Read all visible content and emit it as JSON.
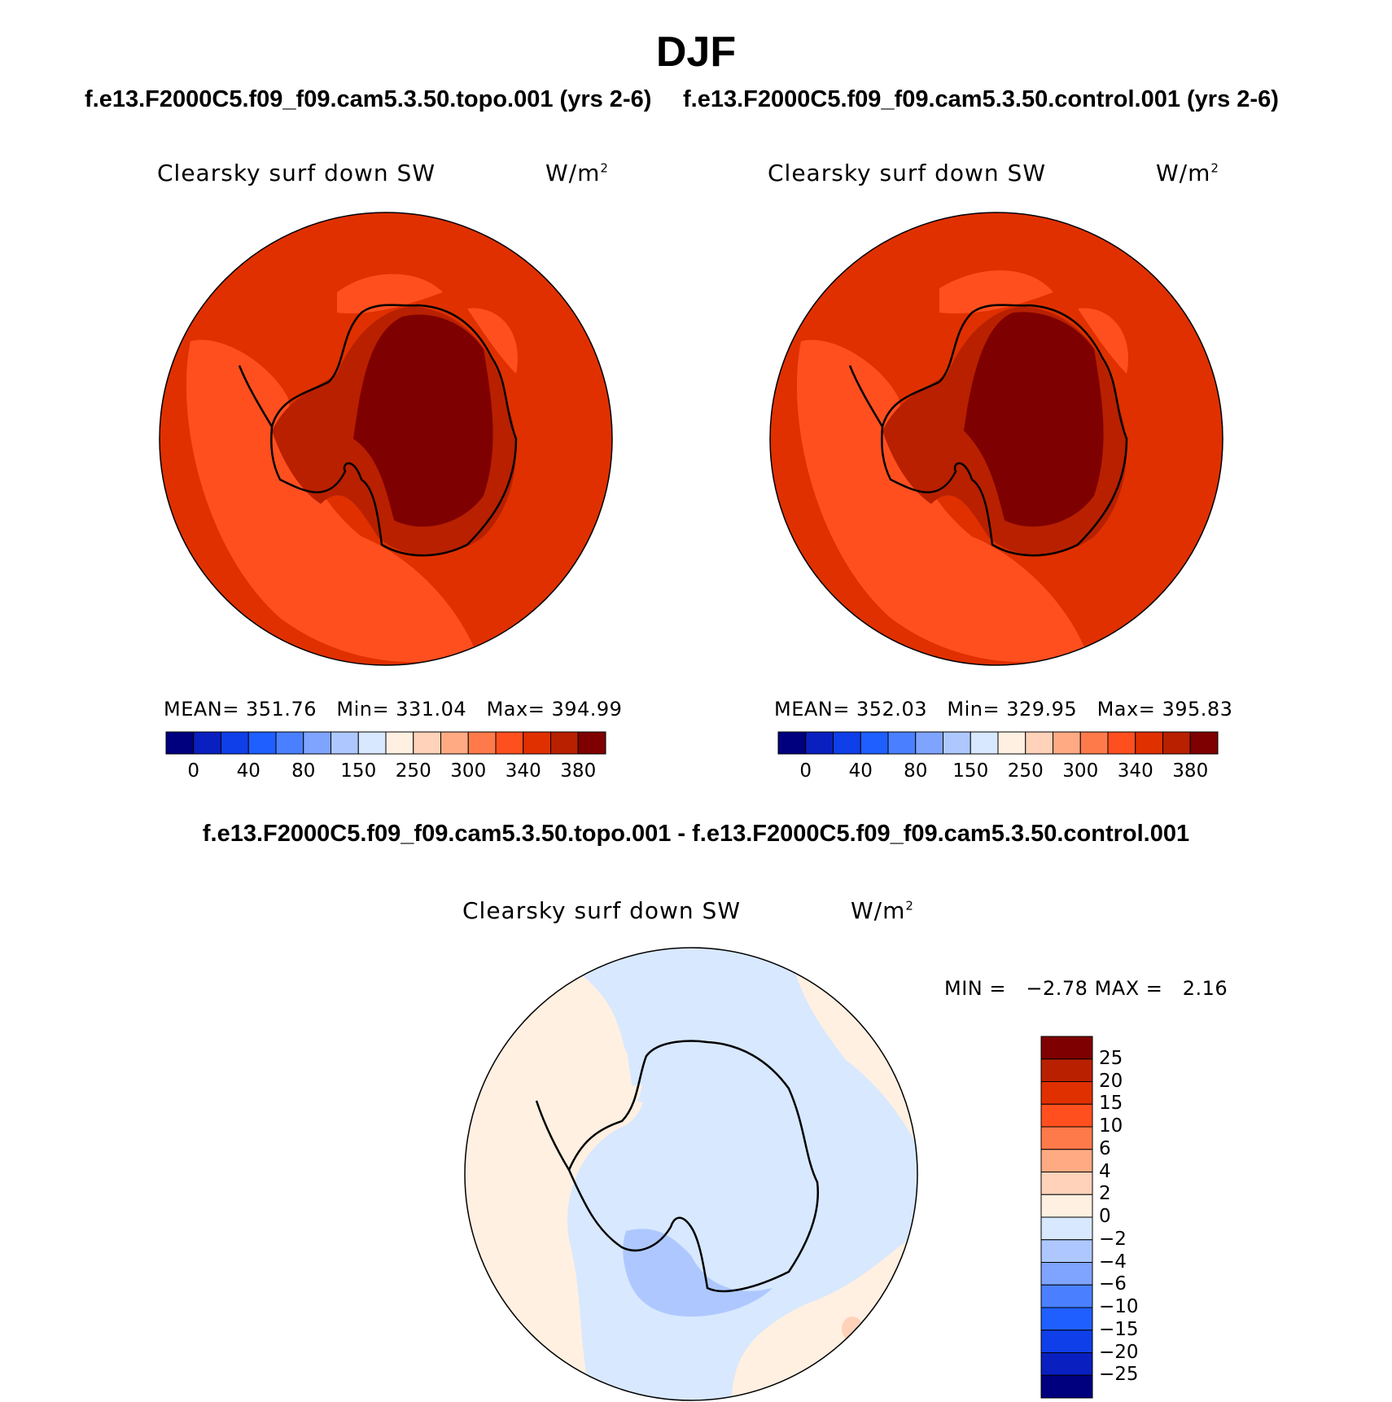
{
  "figure": {
    "season": "DJF",
    "diff_title": "f.e13.F2000C5.f09_f09.cam5.3.50.topo.001 - f.e13.F2000C5.f09_f09.cam5.3.50.control.001"
  },
  "panels": [
    {
      "case_title": "f.e13.F2000C5.f09_f09.cam5.3.50.topo.001 (yrs 2-6)",
      "variable": "Clearsky surf down SW",
      "units": "W/m",
      "units_exp": "2",
      "mean_label": "MEAN=",
      "mean": "351.76",
      "min_label": "Min=",
      "min": "331.04",
      "max_label": "Max=",
      "max": "394.99"
    },
    {
      "case_title": "f.e13.F2000C5.f09_f09.cam5.3.50.control.001 (yrs 2-6)",
      "variable": "Clearsky surf down SW",
      "units": "W/m",
      "units_exp": "2",
      "mean_label": "MEAN=",
      "mean": "352.03",
      "min_label": "Min=",
      "min": "329.95",
      "max_label": "Max=",
      "max": "395.83"
    }
  ],
  "diff_panel": {
    "variable": "Clearsky surf down SW",
    "units": "W/m",
    "units_exp": "2",
    "min_label": "MIN =",
    "min": "−2.78",
    "max_label": "MAX =",
    "max": "2.16"
  },
  "abs_colorbar": {
    "colors": [
      "#00007f",
      "#0a1fbf",
      "#0f3fe8",
      "#1f5fff",
      "#4a80ff",
      "#7fa4ff",
      "#aec8ff",
      "#d7e8ff",
      "#fff0e1",
      "#ffd2b9",
      "#ffaa82",
      "#ff7a4a",
      "#ff4f1f",
      "#e03000",
      "#b82000",
      "#7f0000"
    ],
    "tick_labels": [
      "0",
      "40",
      "80",
      "150",
      "250",
      "300",
      "340",
      "380"
    ]
  },
  "diff_colorbar": {
    "colors_top_to_bottom": [
      "#7f0000",
      "#b82000",
      "#e03000",
      "#ff4f1f",
      "#ff7a4a",
      "#ffaa82",
      "#ffd2b9",
      "#fff0e1",
      "#d7e8ff",
      "#aec8ff",
      "#7fa4ff",
      "#4a80ff",
      "#1f5fff",
      "#0f3fe8",
      "#0a1fbf",
      "#00007f"
    ],
    "tick_labels": [
      "25",
      "20",
      "15",
      "10",
      "6",
      "4",
      "2",
      "0",
      "−2",
      "−4",
      "−6",
      "−10",
      "−15",
      "−20",
      "−25"
    ]
  },
  "map_colors": {
    "ocean_outer": "#e03000",
    "ocean_mid": "#ff4f1f",
    "coast_band": "#b82000",
    "plateau": "#7f0000",
    "diff_pos": "#fff0e1",
    "diff_zero_neg": "#d7e8ff",
    "diff_neg": "#aec8ff",
    "diff_pos_spot": "#ffd2b9"
  }
}
